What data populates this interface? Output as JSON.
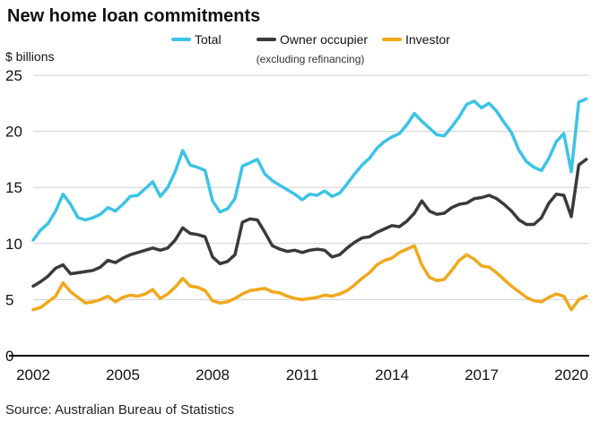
{
  "chart_data": {
    "type": "line",
    "title": "New home loan commitments",
    "ylabel": "$ billions",
    "source": "Source: Australian Bureau of Statistics",
    "ylim": [
      0,
      25
    ],
    "xlim": [
      2002.0,
      2020.6
    ],
    "y_ticks": [
      0,
      5,
      10,
      15,
      20,
      25
    ],
    "x_ticks": [
      2002,
      2005,
      2008,
      2011,
      2014,
      2017,
      2020
    ],
    "grid": true,
    "legend_position": "top",
    "colors": {
      "Total": "#3cc3e6",
      "Owner occupier": "#3a3a3c",
      "Investor": "#f0a81c"
    },
    "series": [
      {
        "name": "Total",
        "note": "",
        "x": [
          2002.0,
          2002.25,
          2002.5,
          2002.75,
          2003.0,
          2003.25,
          2003.5,
          2003.75,
          2004.0,
          2004.25,
          2004.5,
          2004.75,
          2005.0,
          2005.25,
          2005.5,
          2005.75,
          2006.0,
          2006.25,
          2006.5,
          2006.75,
          2007.0,
          2007.25,
          2007.5,
          2007.75,
          2008.0,
          2008.25,
          2008.5,
          2008.75,
          2009.0,
          2009.25,
          2009.5,
          2009.75,
          2010.0,
          2010.25,
          2010.5,
          2010.75,
          2011.0,
          2011.25,
          2011.5,
          2011.75,
          2012.0,
          2012.25,
          2012.5,
          2012.75,
          2013.0,
          2013.25,
          2013.5,
          2013.75,
          2014.0,
          2014.25,
          2014.5,
          2014.75,
          2015.0,
          2015.25,
          2015.5,
          2015.75,
          2016.0,
          2016.25,
          2016.5,
          2016.75,
          2017.0,
          2017.25,
          2017.5,
          2017.75,
          2018.0,
          2018.25,
          2018.5,
          2018.75,
          2019.0,
          2019.25,
          2019.5,
          2019.75,
          2020.0,
          2020.25,
          2020.5
        ],
        "values": [
          10.3,
          11.2,
          11.8,
          12.9,
          14.4,
          13.5,
          12.3,
          12.1,
          12.3,
          12.6,
          13.2,
          12.9,
          13.5,
          14.2,
          14.3,
          14.9,
          15.5,
          14.2,
          15.0,
          16.4,
          18.3,
          17.0,
          16.8,
          16.5,
          13.8,
          12.8,
          13.1,
          14.0,
          16.9,
          17.2,
          17.5,
          16.2,
          15.6,
          15.2,
          14.8,
          14.4,
          13.9,
          14.4,
          14.3,
          14.7,
          14.2,
          14.5,
          15.3,
          16.2,
          17.0,
          17.6,
          18.5,
          19.1,
          19.5,
          19.8,
          20.6,
          21.6,
          20.9,
          20.3,
          19.7,
          19.6,
          20.4,
          21.3,
          22.4,
          22.7,
          22.1,
          22.5,
          21.8,
          20.8,
          19.9,
          18.3,
          17.3,
          16.8,
          16.5,
          17.6,
          19.1,
          19.8,
          16.4,
          22.6,
          22.9
        ]
      },
      {
        "name": "Owner occupier",
        "note": "(excluding refinancing)",
        "x": [
          2002.0,
          2002.25,
          2002.5,
          2002.75,
          2003.0,
          2003.25,
          2003.5,
          2003.75,
          2004.0,
          2004.25,
          2004.5,
          2004.75,
          2005.0,
          2005.25,
          2005.5,
          2005.75,
          2006.0,
          2006.25,
          2006.5,
          2006.75,
          2007.0,
          2007.25,
          2007.5,
          2007.75,
          2008.0,
          2008.25,
          2008.5,
          2008.75,
          2009.0,
          2009.25,
          2009.5,
          2009.75,
          2010.0,
          2010.25,
          2010.5,
          2010.75,
          2011.0,
          2011.25,
          2011.5,
          2011.75,
          2012.0,
          2012.25,
          2012.5,
          2012.75,
          2013.0,
          2013.25,
          2013.5,
          2013.75,
          2014.0,
          2014.25,
          2014.5,
          2014.75,
          2015.0,
          2015.25,
          2015.5,
          2015.75,
          2016.0,
          2016.25,
          2016.5,
          2016.75,
          2017.0,
          2017.25,
          2017.5,
          2017.75,
          2018.0,
          2018.25,
          2018.5,
          2018.75,
          2019.0,
          2019.25,
          2019.5,
          2019.75,
          2020.0,
          2020.25,
          2020.5
        ],
        "values": [
          6.2,
          6.6,
          7.1,
          7.8,
          8.1,
          7.3,
          7.4,
          7.5,
          7.6,
          7.9,
          8.5,
          8.3,
          8.7,
          9.0,
          9.2,
          9.4,
          9.6,
          9.4,
          9.6,
          10.3,
          11.4,
          10.9,
          10.8,
          10.6,
          8.8,
          8.2,
          8.4,
          9.0,
          11.9,
          12.2,
          12.1,
          11.0,
          9.8,
          9.5,
          9.3,
          9.4,
          9.2,
          9.4,
          9.5,
          9.4,
          8.8,
          9.0,
          9.6,
          10.1,
          10.5,
          10.6,
          11.0,
          11.3,
          11.6,
          11.5,
          12.0,
          12.7,
          13.8,
          12.9,
          12.6,
          12.7,
          13.2,
          13.5,
          13.6,
          14.0,
          14.1,
          14.3,
          14.0,
          13.5,
          12.9,
          12.1,
          11.7,
          11.7,
          12.3,
          13.6,
          14.4,
          14.3,
          12.4,
          17.0,
          17.5
        ]
      },
      {
        "name": "Investor",
        "note": "",
        "x": [
          2002.0,
          2002.25,
          2002.5,
          2002.75,
          2003.0,
          2003.25,
          2003.5,
          2003.75,
          2004.0,
          2004.25,
          2004.5,
          2004.75,
          2005.0,
          2005.25,
          2005.5,
          2005.75,
          2006.0,
          2006.25,
          2006.5,
          2006.75,
          2007.0,
          2007.25,
          2007.5,
          2007.75,
          2008.0,
          2008.25,
          2008.5,
          2008.75,
          2009.0,
          2009.25,
          2009.5,
          2009.75,
          2010.0,
          2010.25,
          2010.5,
          2010.75,
          2011.0,
          2011.25,
          2011.5,
          2011.75,
          2012.0,
          2012.25,
          2012.5,
          2012.75,
          2013.0,
          2013.25,
          2013.5,
          2013.75,
          2014.0,
          2014.25,
          2014.5,
          2014.75,
          2015.0,
          2015.25,
          2015.5,
          2015.75,
          2016.0,
          2016.25,
          2016.5,
          2016.75,
          2017.0,
          2017.25,
          2017.5,
          2017.75,
          2018.0,
          2018.25,
          2018.5,
          2018.75,
          2019.0,
          2019.25,
          2019.5,
          2019.75,
          2020.0,
          2020.25,
          2020.5
        ],
        "values": [
          4.1,
          4.3,
          4.8,
          5.3,
          6.5,
          5.7,
          5.2,
          4.7,
          4.8,
          5.0,
          5.3,
          4.8,
          5.2,
          5.4,
          5.3,
          5.5,
          5.9,
          5.1,
          5.5,
          6.1,
          6.9,
          6.2,
          6.1,
          5.8,
          4.9,
          4.7,
          4.8,
          5.1,
          5.5,
          5.8,
          5.9,
          6.0,
          5.7,
          5.6,
          5.3,
          5.1,
          5.0,
          5.1,
          5.2,
          5.4,
          5.3,
          5.5,
          5.8,
          6.3,
          6.9,
          7.4,
          8.1,
          8.5,
          8.7,
          9.2,
          9.5,
          9.8,
          8.1,
          7.0,
          6.7,
          6.8,
          7.6,
          8.5,
          9.0,
          8.6,
          8.0,
          7.9,
          7.4,
          6.8,
          6.2,
          5.7,
          5.2,
          4.9,
          4.8,
          5.2,
          5.5,
          5.3,
          4.1,
          5.0,
          5.3
        ]
      }
    ]
  }
}
